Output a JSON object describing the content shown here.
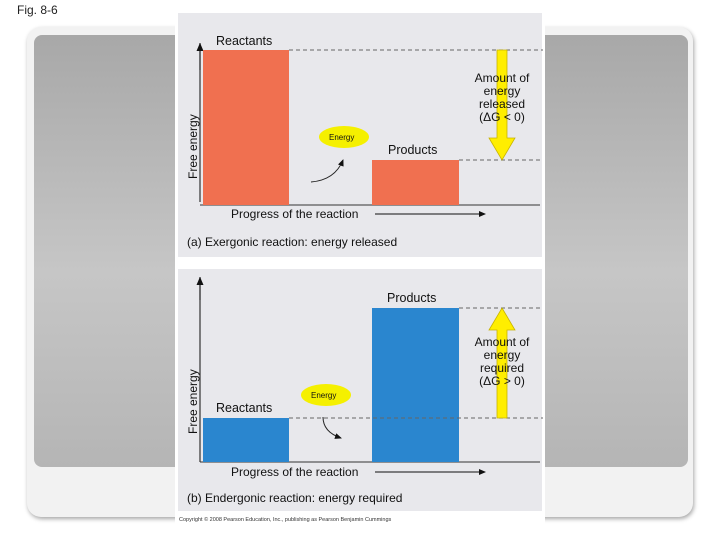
{
  "fig_label": "Fig. 8-6",
  "panel_a": {
    "reactants": "Reactants",
    "products": "Products",
    "y_axis": "Free energy",
    "x_axis": "Progress of the reaction",
    "energy": "Energy",
    "amount_lines": [
      "Amount of",
      "energy",
      "released",
      "(ΔG < 0)"
    ],
    "caption": "(a) Exergonic reaction: energy released",
    "reactant_color": "#f07050",
    "product_color": "#f07050"
  },
  "panel_b": {
    "reactants": "Reactants",
    "products": "Products",
    "y_axis": "Free energy",
    "x_axis": "Progress of the reaction",
    "energy": "Energy",
    "amount_lines": [
      "Amount of",
      "energy",
      "required",
      "(ΔG > 0)"
    ],
    "caption": "(b) Endergonic reaction: energy required",
    "reactant_color": "#2a86cf",
    "product_color": "#2a86cf"
  },
  "copyright": "Copyright © 2008 Pearson Education, Inc., publishing as Pearson Benjamin Cummings",
  "colors": {
    "arrow_yellow": "#ffee00",
    "energy_yellow": "#f5f000"
  }
}
